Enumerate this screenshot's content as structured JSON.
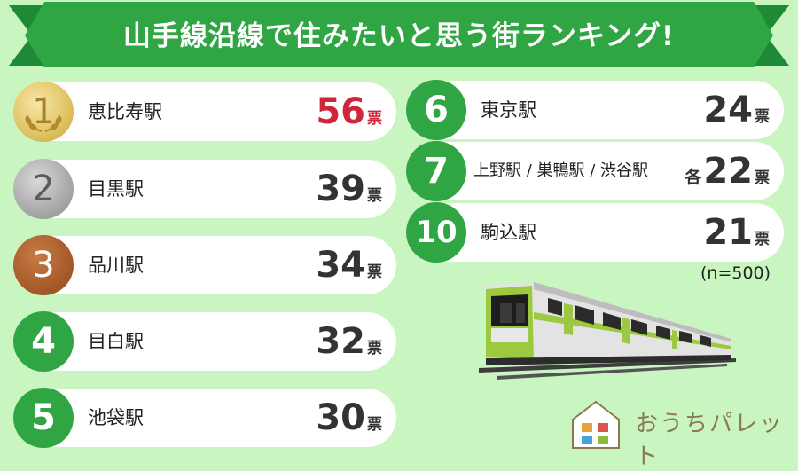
{
  "title": "山手線沿線で住みたいと思う街ランキング!",
  "unit": "票",
  "note": "(n=500)",
  "brand": "おうちパレット",
  "colors": {
    "green": "#2fa544",
    "highlight": "#d0263a",
    "background": "#c8f5c0"
  },
  "chart_data": {
    "type": "bar",
    "title": "山手線沿線で住みたいと思う街ランキング!",
    "categories": [
      "恵比寿駅",
      "目黒駅",
      "品川駅",
      "目白駅",
      "池袋駅",
      "東京駅",
      "上野駅 / 巣鴨駅 / 渋谷駅",
      "駒込駅"
    ],
    "ranks": [
      "1",
      "2",
      "3",
      "4",
      "5",
      "6",
      "7",
      "10"
    ],
    "values": [
      56,
      39,
      34,
      32,
      30,
      24,
      22,
      21
    ],
    "value_prefix": [
      "",
      "",
      "",
      "",
      "",
      "",
      "各",
      ""
    ],
    "unit": "票",
    "sample": "(n=500)"
  }
}
